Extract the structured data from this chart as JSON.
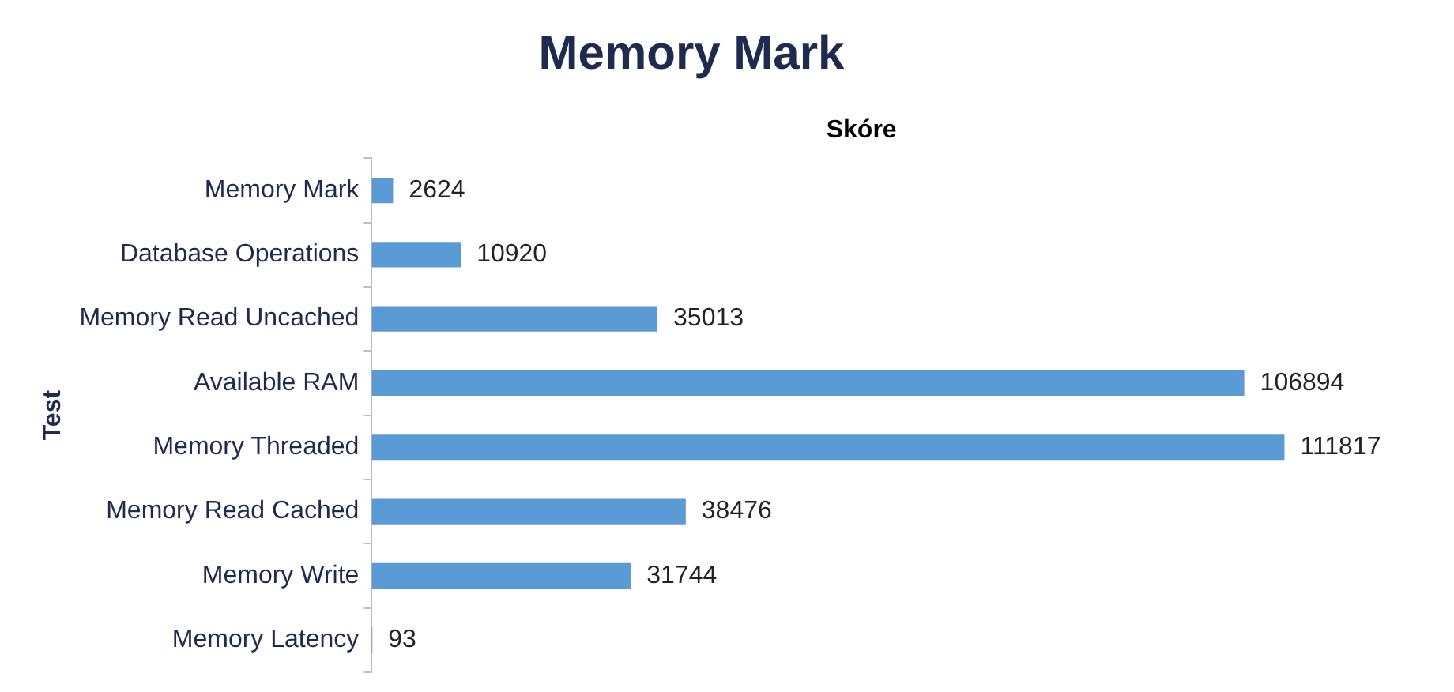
{
  "chart_data": {
    "type": "bar",
    "orientation": "horizontal",
    "title": "Memory Mark",
    "xlabel": "Skóre",
    "ylabel": "Test",
    "categories": [
      "Memory Mark",
      "Database Operations",
      "Memory Read Uncached",
      "Available RAM",
      "Memory Threaded",
      "Memory Read Cached",
      "Memory Write",
      "Memory Latency"
    ],
    "values": [
      2624,
      10920,
      35013,
      106894,
      111817,
      38476,
      31744,
      93
    ],
    "color": "#5b9bd5",
    "data_labels": true,
    "grid": false,
    "legend": false
  }
}
